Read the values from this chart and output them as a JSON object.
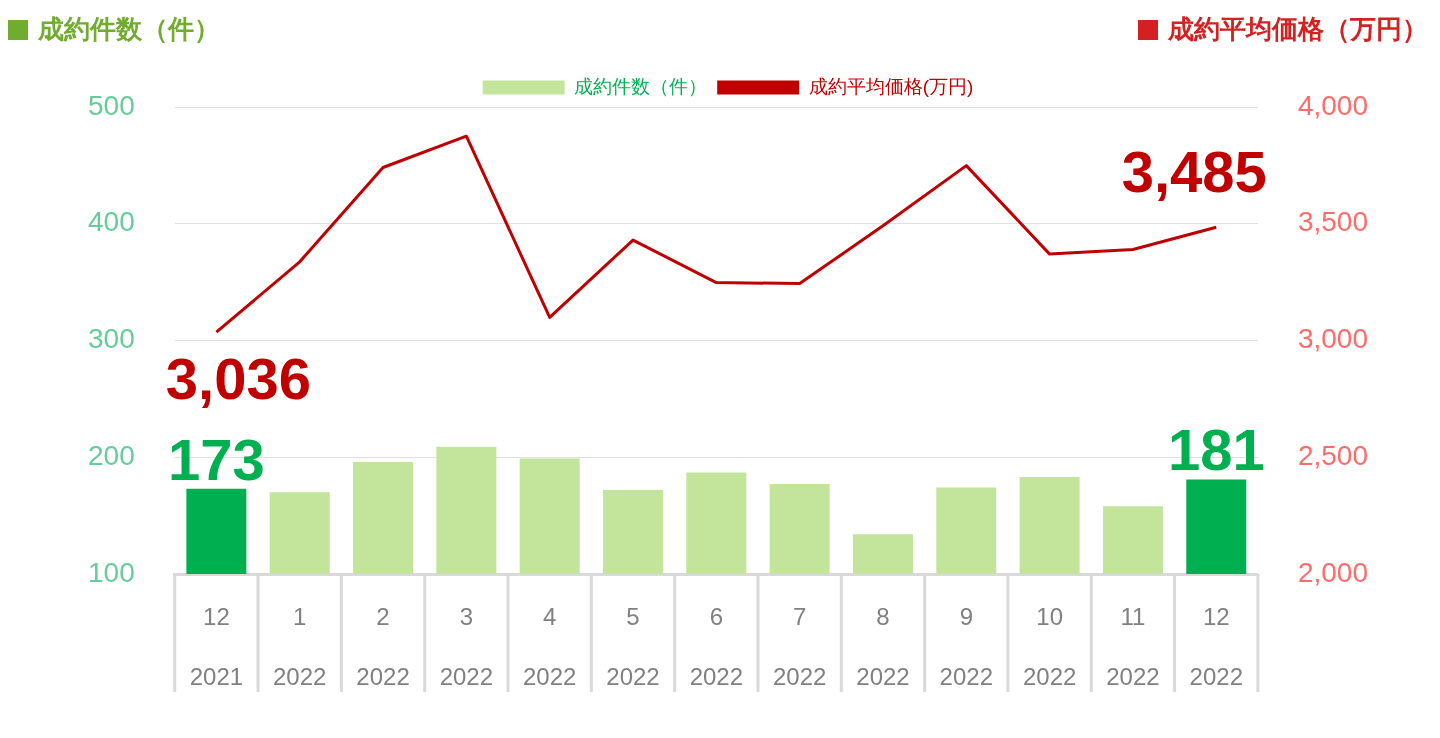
{
  "chart_data": {
    "type": "bar",
    "ylabel": "成約件数（件）",
    "y2label": "成約平均価格（万円）",
    "categories": [
      "12\n2021",
      "1\n2022",
      "2\n2022",
      "3\n2022",
      "4\n2022",
      "5\n2022",
      "6\n2022",
      "7\n2022",
      "8\n2022",
      "9\n2022",
      "10\n2022",
      "11\n2022",
      "12\n2022"
    ],
    "series": [
      {
        "name": "成約件数（件）",
        "color": "#c2e59b",
        "colors": [
          "#00b050",
          "#c2e59b",
          "#c2e59b",
          "#c2e59b",
          "#c2e59b",
          "#c2e59b",
          "#c2e59b",
          "#c2e59b",
          "#c2e59b",
          "#c2e59b",
          "#c2e59b",
          "#c2e59b",
          "#00b050"
        ],
        "values": [
          173,
          170,
          196,
          209,
          199,
          172,
          187,
          177,
          134,
          174,
          183,
          158,
          181
        ],
        "value_labels": [
          "173",
          null,
          null,
          null,
          null,
          null,
          null,
          null,
          null,
          null,
          null,
          null,
          "181"
        ]
      },
      {
        "name": "成約平均価格(万円)",
        "type": "line",
        "axis": "y2",
        "color": "#c00000",
        "values": [
          3036,
          3337,
          3741,
          3875,
          3099,
          3430,
          3248,
          3244,
          3491,
          3749,
          3370,
          3390,
          3485
        ],
        "value_labels": [
          "3,036",
          null,
          null,
          null,
          null,
          null,
          null,
          null,
          null,
          null,
          null,
          null,
          "3,485"
        ]
      }
    ],
    "ylim": [
      100,
      500
    ],
    "yticks": [
      100,
      200,
      300,
      400,
      500
    ],
    "y2lim": [
      2000,
      4000
    ],
    "y2ticks": [
      {
        "value": 2000,
        "label": "2,000"
      },
      {
        "value": 2500,
        "label": "2,500"
      },
      {
        "value": 3000,
        "label": "3,000"
      },
      {
        "value": 3500,
        "label": "3,500"
      },
      {
        "value": 4000,
        "label": "4,000"
      }
    ],
    "grid": "y",
    "legend": "top",
    "marker": "none",
    "line_style": "solid"
  }
}
